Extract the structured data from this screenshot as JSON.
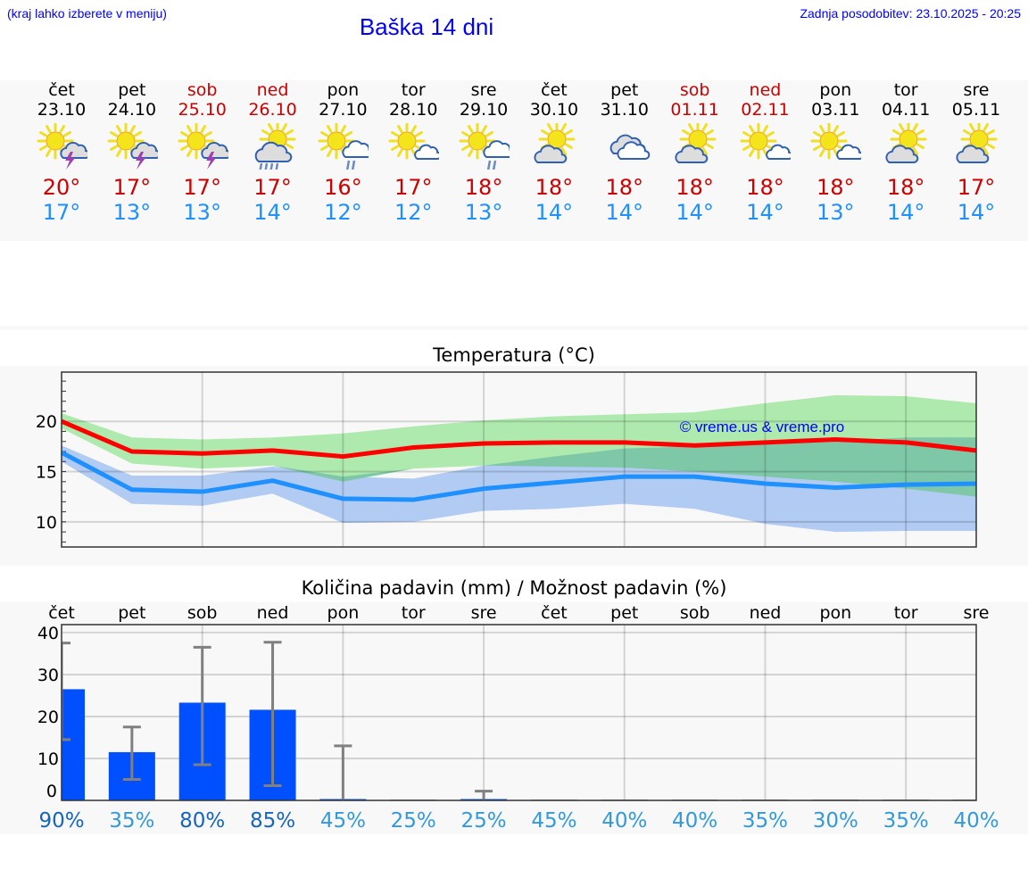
{
  "header": {
    "hint": "(kraj lahko izberete v meniju)",
    "title": "Baška 14 dni",
    "updated": "Zadnja posodobitev: 23.10.2025 - 20:25"
  },
  "days": [
    {
      "name": "čet",
      "date": "23.10",
      "weekend": false,
      "icon": "sun-thunder",
      "max": "20°",
      "min": "17°"
    },
    {
      "name": "pet",
      "date": "24.10",
      "weekend": false,
      "icon": "sun-thunder",
      "max": "17°",
      "min": "13°"
    },
    {
      "name": "sob",
      "date": "25.10",
      "weekend": true,
      "icon": "sun-thunder",
      "max": "17°",
      "min": "13°"
    },
    {
      "name": "ned",
      "date": "26.10",
      "weekend": true,
      "icon": "sun-cloud-heavy-rain",
      "max": "17°",
      "min": "14°"
    },
    {
      "name": "pon",
      "date": "27.10",
      "weekend": false,
      "icon": "sun-small-cloud-rain",
      "max": "16°",
      "min": "12°"
    },
    {
      "name": "tor",
      "date": "28.10",
      "weekend": false,
      "icon": "sun-small-cloud",
      "max": "17°",
      "min": "12°"
    },
    {
      "name": "sre",
      "date": "29.10",
      "weekend": false,
      "icon": "sun-small-cloud-rain",
      "max": "18°",
      "min": "13°"
    },
    {
      "name": "čet",
      "date": "30.10",
      "weekend": false,
      "icon": "sun-big-cloud",
      "max": "18°",
      "min": "14°"
    },
    {
      "name": "pet",
      "date": "31.10",
      "weekend": false,
      "icon": "clouds",
      "max": "18°",
      "min": "14°"
    },
    {
      "name": "sob",
      "date": "01.11",
      "weekend": true,
      "icon": "sun-big-cloud",
      "max": "18°",
      "min": "14°"
    },
    {
      "name": "ned",
      "date": "02.11",
      "weekend": true,
      "icon": "sun-small-cloud",
      "max": "18°",
      "min": "14°"
    },
    {
      "name": "pon",
      "date": "03.11",
      "weekend": false,
      "icon": "sun-small-cloud",
      "max": "18°",
      "min": "13°"
    },
    {
      "name": "tor",
      "date": "04.11",
      "weekend": false,
      "icon": "sun-big-cloud",
      "max": "18°",
      "min": "14°"
    },
    {
      "name": "sre",
      "date": "05.11",
      "weekend": false,
      "icon": "sun-big-cloud",
      "max": "17°",
      "min": "14°"
    }
  ],
  "colors": {
    "max": "#ff0000",
    "min": "#1e90ff",
    "max_band": "#aeeaae",
    "min_band": "#adc8f2",
    "overlap": "#7ec8a8",
    "bar": "#0050ff",
    "err": "#808080",
    "pct_high": "#1565c0",
    "pct_low": "#3399dd"
  },
  "chart_data": [
    {
      "type": "line",
      "title": "Temperatura (°C)",
      "watermark": "© vreme.us & vreme.pro",
      "x": [
        0,
        1,
        2,
        3,
        4,
        5,
        6,
        7,
        8,
        9,
        10,
        11,
        12,
        13
      ],
      "ylim": [
        7.5,
        24.9
      ],
      "yticks": [
        10,
        15,
        20
      ],
      "grid": true,
      "series": [
        {
          "name": "max",
          "values": [
            20.0,
            17.0,
            16.8,
            17.1,
            16.5,
            17.4,
            17.8,
            17.9,
            17.9,
            17.6,
            17.9,
            18.2,
            17.9,
            17.1
          ],
          "band_upper": [
            20.8,
            18.4,
            18.2,
            18.4,
            18.8,
            19.5,
            20.1,
            20.5,
            20.7,
            20.9,
            21.8,
            22.6,
            22.5,
            21.8
          ],
          "band_lower": [
            19.3,
            15.8,
            15.3,
            15.6,
            14.0,
            15.3,
            15.6,
            15.5,
            15.4,
            15.0,
            14.5,
            14.0,
            13.3,
            12.5
          ]
        },
        {
          "name": "min",
          "values": [
            16.9,
            13.2,
            13.0,
            14.1,
            12.3,
            12.2,
            13.3,
            13.9,
            14.5,
            14.5,
            13.8,
            13.4,
            13.7,
            13.8
          ],
          "band_upper": [
            17.6,
            14.6,
            14.6,
            15.5,
            14.5,
            14.3,
            15.6,
            16.5,
            17.3,
            17.5,
            17.8,
            18.0,
            18.4,
            18.4
          ],
          "band_lower": [
            16.0,
            11.8,
            11.6,
            12.8,
            9.9,
            10.0,
            11.1,
            11.3,
            11.8,
            11.3,
            9.8,
            9.0,
            9.1,
            9.1
          ]
        }
      ]
    },
    {
      "type": "bar",
      "title": "Količina padavin (mm) / Možnost padavin (%)",
      "categories": [
        "čet",
        "pet",
        "sob",
        "ned",
        "pon",
        "tor",
        "sre",
        "čet",
        "pet",
        "sob",
        "ned",
        "pon",
        "tor",
        "sre"
      ],
      "ylim": [
        0,
        41.9
      ],
      "yticks": [
        0,
        10,
        20,
        30,
        40
      ],
      "values": [
        26.5,
        11.5,
        23.3,
        21.6,
        0.3,
        0,
        0.2,
        0,
        0,
        0,
        0,
        0,
        0,
        0
      ],
      "err_low": [
        14.5,
        5,
        8.5,
        3.5,
        0,
        0,
        0,
        0,
        0,
        0,
        0,
        0,
        0,
        0
      ],
      "err_high": [
        37.5,
        17.5,
        36.5,
        37.7,
        13,
        0,
        2.2,
        0,
        0,
        0,
        0,
        0,
        0,
        0
      ],
      "probability": [
        "90%",
        "35%",
        "80%",
        "85%",
        "45%",
        "25%",
        "25%",
        "45%",
        "40%",
        "40%",
        "35%",
        "30%",
        "35%",
        "40%"
      ],
      "probability_values": [
        90,
        35,
        80,
        85,
        45,
        25,
        25,
        45,
        40,
        40,
        35,
        30,
        35,
        40
      ]
    }
  ]
}
